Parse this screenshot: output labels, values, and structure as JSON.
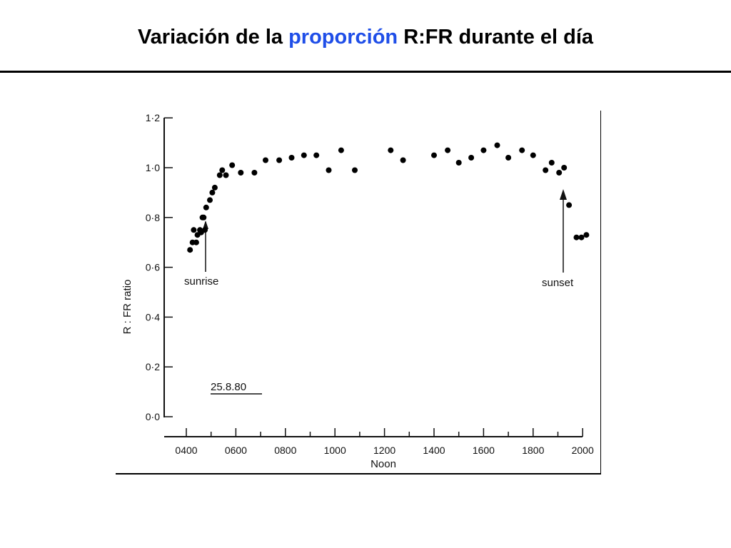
{
  "slide": {
    "title_before": "Variación de la ",
    "title_accent": "proporción",
    "title_after": " R:FR durante el día",
    "accent_color": "#1f4ee8"
  },
  "chart_data": {
    "type": "scatter",
    "ylabel": "R : FR  ratio",
    "xlabel": "Noon",
    "x_ticks": [
      "0400",
      "0600",
      "0800",
      "1000",
      "1200",
      "1400",
      "1600",
      "1800",
      "2000"
    ],
    "y_ticks": [
      "0·0",
      "0·2",
      "0·4",
      "0·6",
      "0·8",
      "1·0",
      "1·2"
    ],
    "xlim": [
      3.4,
      20.0
    ],
    "ylim": [
      0.0,
      1.2
    ],
    "grid": false,
    "annotations": [
      {
        "text": "sunrise",
        "x": 4.8,
        "y": 0.74
      },
      {
        "text": "sunset",
        "x": 19.3,
        "y": 0.92
      },
      {
        "text": "25.8.80"
      }
    ],
    "points": [
      {
        "x": 4.15,
        "y": 0.67
      },
      {
        "x": 4.25,
        "y": 0.7
      },
      {
        "x": 4.3,
        "y": 0.75
      },
      {
        "x": 4.4,
        "y": 0.7
      },
      {
        "x": 4.45,
        "y": 0.73
      },
      {
        "x": 4.55,
        "y": 0.75
      },
      {
        "x": 4.6,
        "y": 0.74
      },
      {
        "x": 4.65,
        "y": 0.8
      },
      {
        "x": 4.7,
        "y": 0.8
      },
      {
        "x": 4.75,
        "y": 0.75
      },
      {
        "x": 4.8,
        "y": 0.84
      },
      {
        "x": 4.95,
        "y": 0.87
      },
      {
        "x": 5.05,
        "y": 0.9
      },
      {
        "x": 5.15,
        "y": 0.92
      },
      {
        "x": 5.35,
        "y": 0.97
      },
      {
        "x": 5.45,
        "y": 0.99
      },
      {
        "x": 5.6,
        "y": 0.97
      },
      {
        "x": 5.85,
        "y": 1.01
      },
      {
        "x": 6.2,
        "y": 0.98
      },
      {
        "x": 6.75,
        "y": 0.98
      },
      {
        "x": 7.2,
        "y": 1.03
      },
      {
        "x": 7.75,
        "y": 1.03
      },
      {
        "x": 8.25,
        "y": 1.04
      },
      {
        "x": 8.75,
        "y": 1.05
      },
      {
        "x": 9.25,
        "y": 1.05
      },
      {
        "x": 9.75,
        "y": 0.99
      },
      {
        "x": 10.25,
        "y": 1.07
      },
      {
        "x": 10.8,
        "y": 0.99
      },
      {
        "x": 12.25,
        "y": 1.07
      },
      {
        "x": 12.75,
        "y": 1.03
      },
      {
        "x": 14.0,
        "y": 1.05
      },
      {
        "x": 14.55,
        "y": 1.07
      },
      {
        "x": 15.0,
        "y": 1.02
      },
      {
        "x": 15.5,
        "y": 1.04
      },
      {
        "x": 16.0,
        "y": 1.07
      },
      {
        "x": 16.55,
        "y": 1.09
      },
      {
        "x": 17.0,
        "y": 1.04
      },
      {
        "x": 17.55,
        "y": 1.07
      },
      {
        "x": 18.0,
        "y": 1.05
      },
      {
        "x": 18.5,
        "y": 0.99
      },
      {
        "x": 18.75,
        "y": 1.02
      },
      {
        "x": 19.05,
        "y": 0.98
      },
      {
        "x": 19.25,
        "y": 1.0
      },
      {
        "x": 19.45,
        "y": 0.85
      },
      {
        "x": 19.75,
        "y": 0.72
      },
      {
        "x": 19.95,
        "y": 0.72
      },
      {
        "x": 20.15,
        "y": 0.73
      }
    ]
  }
}
